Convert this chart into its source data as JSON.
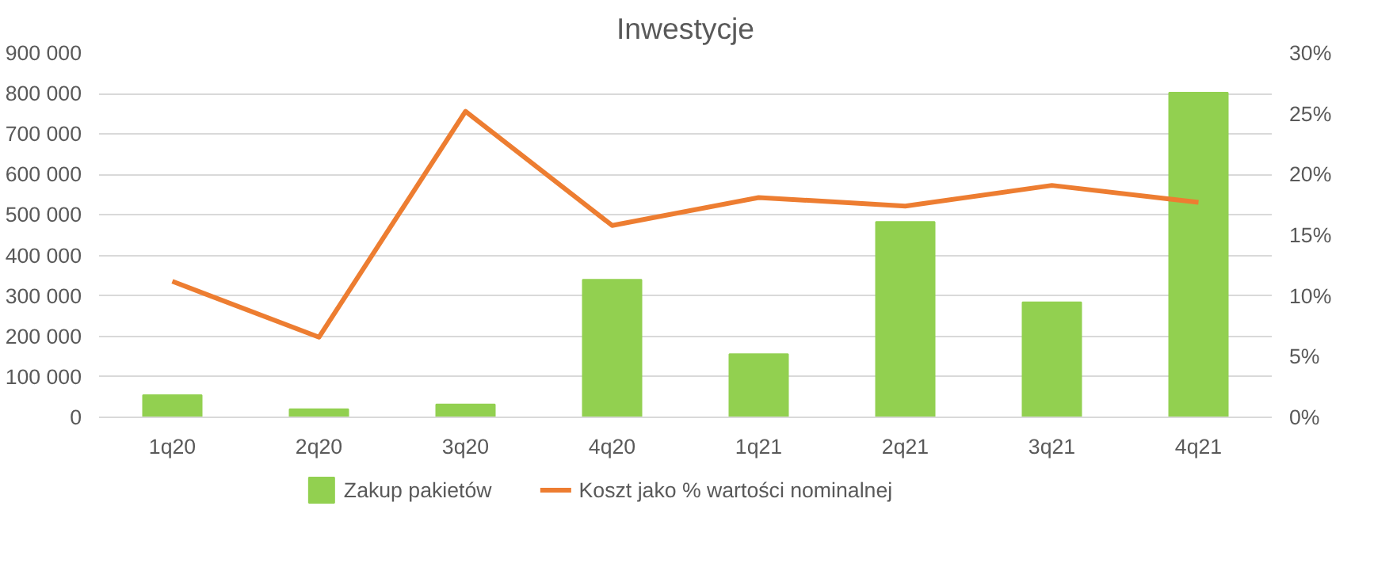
{
  "chart_data": {
    "type": "bar",
    "title": "Inwestycje",
    "categories": [
      "1q20",
      "2q20",
      "3q20",
      "4q20",
      "1q21",
      "2q21",
      "3q21",
      "4q21"
    ],
    "series": [
      {
        "name": "Zakup pakietów",
        "color": "#92d050",
        "values": [
          55000,
          20000,
          32000,
          340000,
          156000,
          483000,
          284000,
          802000
        ]
      },
      {
        "name": "Koszt jako % wartości nominalnej",
        "type": "line",
        "axis": "y2",
        "color": "#ed7d31",
        "values": [
          11.2,
          6.6,
          25.2,
          15.8,
          18.1,
          17.4,
          19.1,
          17.7
        ]
      }
    ],
    "ylim": [
      0,
      900000
    ],
    "yticks": [
      {
        "value": 0,
        "label": "0"
      },
      {
        "value": 100000,
        "label": "100 000"
      },
      {
        "value": 200000,
        "label": "200 000"
      },
      {
        "value": 300000,
        "label": "300 000"
      },
      {
        "value": 400000,
        "label": "400 000"
      },
      {
        "value": 500000,
        "label": "500 000"
      },
      {
        "value": 600000,
        "label": "600 000"
      },
      {
        "value": 700000,
        "label": "700 000"
      },
      {
        "value": 800000,
        "label": "800 000"
      },
      {
        "value": 900000,
        "label": "900 000"
      }
    ],
    "y2lim": [
      0,
      30
    ],
    "y2ticks": [
      {
        "value": 0,
        "label": "0%"
      },
      {
        "value": 5,
        "label": "5%"
      },
      {
        "value": 10,
        "label": "10%"
      },
      {
        "value": 15,
        "label": "15%"
      },
      {
        "value": 20,
        "label": "20%"
      },
      {
        "value": 25,
        "label": "25%"
      },
      {
        "value": 30,
        "label": "30%"
      }
    ],
    "grid": "y",
    "legend": "bottom",
    "line_style": "solid"
  }
}
